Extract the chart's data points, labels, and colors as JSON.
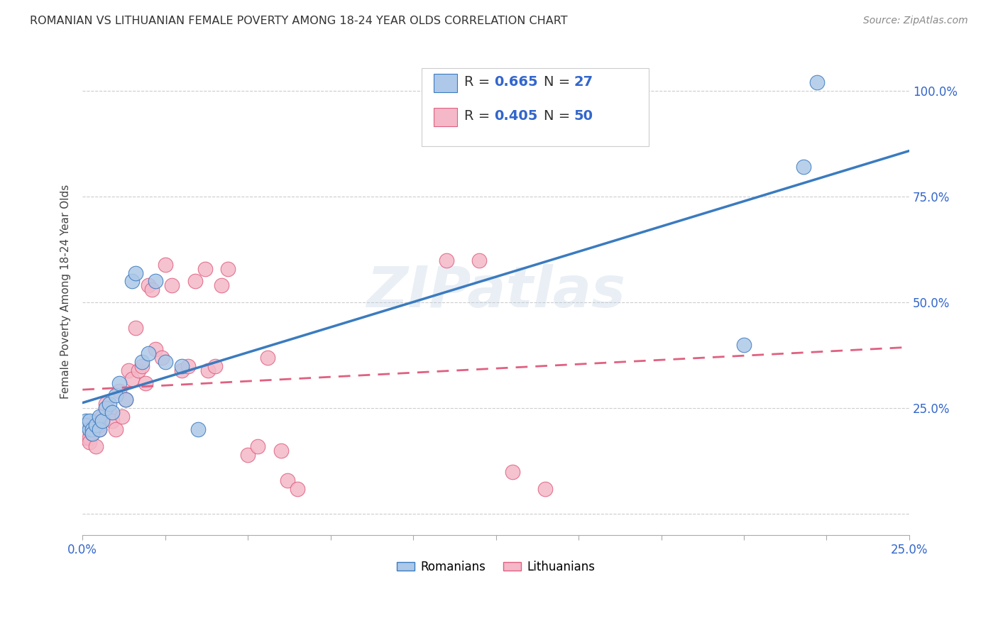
{
  "title": "ROMANIAN VS LITHUANIAN FEMALE POVERTY AMONG 18-24 YEAR OLDS CORRELATION CHART",
  "source": "Source: ZipAtlas.com",
  "ylabel": "Female Poverty Among 18-24 Year Olds",
  "xlim": [
    0.0,
    0.25
  ],
  "ylim": [
    -0.05,
    1.1
  ],
  "romanian_R": 0.665,
  "romanian_N": 27,
  "lithuanian_R": 0.405,
  "lithuanian_N": 50,
  "romanian_color": "#adc8e8",
  "lithuanian_color": "#f4b8c8",
  "line_romanian_color": "#3a7bbf",
  "line_lithuanian_color": "#e06080",
  "watermark": "ZIPatlas",
  "romanian_x": [
    0.001,
    0.001,
    0.002,
    0.002,
    0.003,
    0.003,
    0.004,
    0.005,
    0.005,
    0.006,
    0.007,
    0.008,
    0.009,
    0.01,
    0.011,
    0.013,
    0.015,
    0.016,
    0.018,
    0.02,
    0.022,
    0.025,
    0.03,
    0.035,
    0.2,
    0.218,
    0.222
  ],
  "romanian_y": [
    0.22,
    0.21,
    0.2,
    0.22,
    0.2,
    0.19,
    0.21,
    0.23,
    0.2,
    0.22,
    0.25,
    0.26,
    0.24,
    0.28,
    0.31,
    0.27,
    0.55,
    0.57,
    0.36,
    0.38,
    0.55,
    0.36,
    0.35,
    0.2,
    0.4,
    0.82,
    1.02
  ],
  "lithuanian_x": [
    0.001,
    0.001,
    0.001,
    0.002,
    0.002,
    0.003,
    0.003,
    0.004,
    0.004,
    0.005,
    0.005,
    0.006,
    0.007,
    0.007,
    0.008,
    0.009,
    0.01,
    0.011,
    0.012,
    0.013,
    0.014,
    0.015,
    0.016,
    0.017,
    0.018,
    0.019,
    0.02,
    0.021,
    0.022,
    0.024,
    0.025,
    0.027,
    0.03,
    0.032,
    0.034,
    0.037,
    0.038,
    0.04,
    0.042,
    0.044,
    0.05,
    0.053,
    0.056,
    0.06,
    0.062,
    0.065,
    0.11,
    0.12,
    0.13,
    0.14
  ],
  "lithuanian_y": [
    0.2,
    0.19,
    0.18,
    0.18,
    0.17,
    0.2,
    0.19,
    0.16,
    0.22,
    0.2,
    0.21,
    0.23,
    0.25,
    0.26,
    0.24,
    0.22,
    0.2,
    0.29,
    0.23,
    0.27,
    0.34,
    0.32,
    0.44,
    0.34,
    0.35,
    0.31,
    0.54,
    0.53,
    0.39,
    0.37,
    0.59,
    0.54,
    0.34,
    0.35,
    0.55,
    0.58,
    0.34,
    0.35,
    0.54,
    0.58,
    0.14,
    0.16,
    0.37,
    0.15,
    0.08,
    0.06,
    0.6,
    0.6,
    0.1,
    0.06
  ],
  "background_color": "#ffffff",
  "grid_color": "#cccccc"
}
